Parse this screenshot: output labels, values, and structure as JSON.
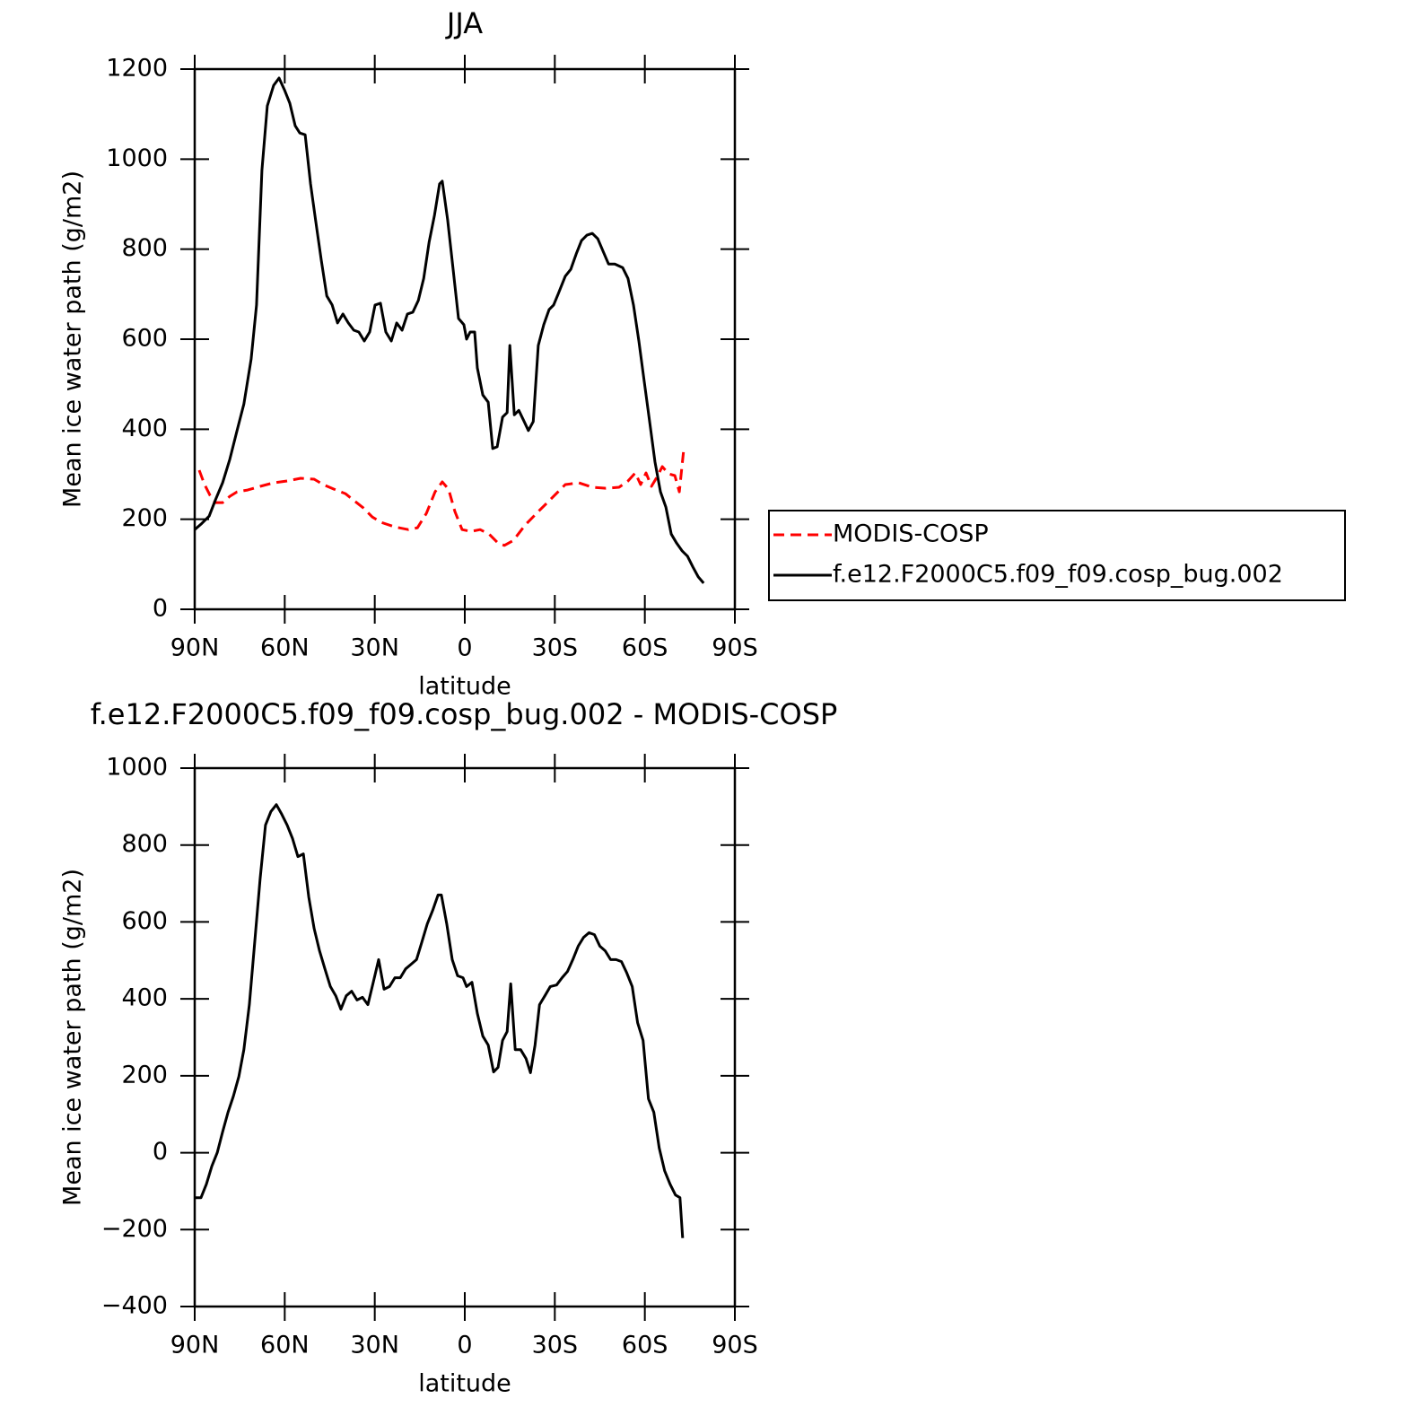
{
  "chart_data": [
    {
      "type": "line",
      "title": "JJA",
      "xlabel": "latitude",
      "ylabel": "Mean ice water path (g/m2)",
      "xlim": [
        90,
        -90
      ],
      "ylim": [
        0,
        1200
      ],
      "xticks": [
        {
          "value": 90,
          "label": "90N"
        },
        {
          "value": 60,
          "label": "60N"
        },
        {
          "value": 30,
          "label": "30N"
        },
        0,
        {
          "value": -30,
          "label": "30S"
        },
        {
          "value": -60,
          "label": "60S"
        },
        {
          "value": -90,
          "label": "90S"
        }
      ],
      "yticks": [
        0,
        200,
        400,
        600,
        800,
        1000,
        1200
      ],
      "legend": "right",
      "series": [
        {
          "name": "MODIS-COSP",
          "color": "#ff0000",
          "style": "dashed",
          "x": [
            88.5,
            86.7,
            84.9,
            83.1,
            80.7,
            78.3,
            75.9,
            72.4,
            68.2,
            63.7,
            59.2,
            54.7,
            50.2,
            47.2,
            43.6,
            39.8,
            36.8,
            33.8,
            30.8,
            27.8,
            23.3,
            18.8,
            15.8,
            12.8,
            9.9,
            7.5,
            5.4,
            3.3,
            0.9,
            -2.1,
            -5.1,
            -8.1,
            -11.1,
            -13.2,
            -16.2,
            -20.1,
            -24.5,
            -29.0,
            -33.5,
            -38.0,
            -42.5,
            -47.0,
            -51.4,
            -54.4,
            -56.8,
            -58.6,
            -60.4,
            -62.2,
            -64.0,
            -65.8,
            -67.9,
            -70.0,
            -71.5,
            -73.0
          ],
          "values": [
            309,
            277,
            253,
            237,
            237,
            251,
            261,
            265,
            273,
            281,
            285,
            291,
            289,
            277,
            267,
            257,
            241,
            225,
            205,
            193,
            183,
            177,
            181,
            213,
            261,
            283,
            267,
            217,
            177,
            173,
            177,
            167,
            147,
            142,
            153,
            187,
            217,
            247,
            277,
            281,
            271,
            269,
            271,
            285,
            303,
            277,
            303,
            273,
            293,
            317,
            301,
            297,
            261,
            357
          ]
        },
        {
          "name": "f.e12.F2000C5.f09_f09.cosp_bug.002",
          "color": "#000000",
          "style": "solid",
          "x": [
            90,
            87.6,
            85.2,
            83.1,
            80.7,
            78.3,
            75.9,
            73.6,
            71.2,
            69.4,
            67.6,
            65.8,
            63.7,
            61.9,
            60.1,
            58.3,
            56.5,
            55.0,
            53.2,
            51.4,
            49.6,
            47.8,
            46.0,
            44.2,
            42.4,
            40.6,
            38.8,
            37.0,
            35.3,
            33.5,
            31.7,
            29.9,
            28.1,
            26.3,
            24.5,
            22.7,
            20.9,
            19.1,
            17.3,
            15.5,
            13.7,
            11.9,
            10.1,
            8.4,
            7.5,
            5.7,
            3.9,
            2.1,
            0.3,
            -0.6,
            -1.8,
            -3.3,
            -4.2,
            -6.0,
            -7.8,
            -9.3,
            -10.8,
            -12.6,
            -14.1,
            -15.0,
            -16.5,
            -18.0,
            -19.8,
            -21.2,
            -22.8,
            -24.5,
            -26.3,
            -28.1,
            -29.6,
            -31.1,
            -33.5,
            -35.3,
            -37.1,
            -38.9,
            -40.7,
            -42.5,
            -44.3,
            -46.1,
            -47.9,
            -50.0,
            -52.6,
            -54.4,
            -56.2,
            -58.0,
            -59.8,
            -61.6,
            -63.4,
            -65.2,
            -67.0,
            -68.8,
            -70.6,
            -72.4,
            -74.2,
            -76.0,
            -77.8,
            -79.6
          ],
          "values": [
            177,
            191,
            207,
            243,
            281,
            333,
            397,
            456,
            556,
            676,
            975,
            1118,
            1164,
            1180,
            1154,
            1124,
            1074,
            1058,
            1054,
            945,
            859,
            775,
            696,
            676,
            636,
            656,
            636,
            620,
            616,
            596,
            616,
            676,
            680,
            616,
            596,
            636,
            620,
            656,
            660,
            686,
            735,
            815,
            875,
            945,
            951,
            865,
            755,
            646,
            632,
            600,
            616,
            616,
            536,
            476,
            460,
            357,
            361,
            427,
            437,
            586,
            432,
            442,
            417,
            397,
            417,
            586,
            632,
            666,
            676,
            700,
            740,
            755,
            789,
            819,
            831,
            835,
            823,
            795,
            767,
            767,
            759,
            735,
            676,
            596,
            506,
            417,
            327,
            261,
            227,
            167,
            147,
            130,
            118,
            94,
            72,
            58
          ]
        }
      ]
    },
    {
      "type": "line",
      "title": "f.e12.F2000C5.f09_f09.cosp_bug.002 - MODIS-COSP",
      "xlabel": "latitude",
      "ylabel": "Mean ice water path (g/m2)",
      "xlim": [
        90,
        -90
      ],
      "ylim": [
        -400,
        1000
      ],
      "xticks": [
        {
          "value": 90,
          "label": "90N"
        },
        {
          "value": 60,
          "label": "60N"
        },
        {
          "value": 30,
          "label": "30N"
        },
        0,
        {
          "value": -30,
          "label": "30S"
        },
        {
          "value": -60,
          "label": "60S"
        },
        {
          "value": -90,
          "label": "90S"
        }
      ],
      "yticks": [
        {
          "value": -400,
          "label": "−400"
        },
        {
          "value": -200,
          "label": "−200"
        },
        0,
        200,
        400,
        600,
        800,
        1000
      ],
      "series": [
        {
          "color": "#000000",
          "style": "solid",
          "x": [
            89.7,
            87.9,
            86.1,
            84.3,
            82.5,
            80.7,
            78.9,
            77.1,
            75.3,
            73.6,
            71.8,
            70.0,
            68.2,
            66.4,
            64.6,
            62.8,
            61.0,
            59.2,
            57.4,
            55.6,
            53.8,
            52.0,
            50.2,
            48.4,
            46.6,
            44.8,
            43.0,
            41.3,
            39.5,
            37.7,
            35.9,
            34.1,
            32.3,
            30.5,
            28.7,
            26.9,
            25.1,
            23.3,
            21.5,
            19.7,
            17.9,
            16.1,
            14.3,
            12.5,
            10.7,
            8.9,
            7.8,
            6.0,
            4.2,
            2.4,
            0.6,
            -0.6,
            -2.4,
            -4.2,
            -6.0,
            -7.8,
            -9.6,
            -11.1,
            -12.6,
            -14.1,
            -15.3,
            -16.8,
            -18.6,
            -20.4,
            -21.9,
            -23.4,
            -24.9,
            -26.7,
            -28.5,
            -30.6,
            -32.4,
            -34.2,
            -36.0,
            -37.8,
            -39.6,
            -41.4,
            -43.2,
            -45.0,
            -46.8,
            -48.6,
            -50.4,
            -52.2,
            -54.0,
            -55.8,
            -57.6,
            -59.4,
            -61.2,
            -63.0,
            -64.8,
            -66.6,
            -68.4,
            -70.2,
            -71.7,
            -72.6
          ],
          "values": [
            -117,
            -117,
            -82,
            -35,
            0,
            54,
            105,
            147,
            198,
            268,
            385,
            548,
            712,
            852,
            887,
            905,
            880,
            852,
            817,
            770,
            777,
            665,
            583,
            525,
            478,
            432,
            408,
            373,
            408,
            420,
            397,
            404,
            385,
            443,
            502,
            425,
            432,
            455,
            455,
            478,
            490,
            502,
            548,
            595,
            630,
            670,
            670,
            595,
            502,
            460,
            455,
            432,
            443,
            362,
            303,
            280,
            210,
            222,
            292,
            315,
            439,
            268,
            268,
            245,
            208,
            280,
            385,
            408,
            432,
            436,
            455,
            471,
            502,
            537,
            560,
            572,
            567,
            537,
            525,
            502,
            502,
            497,
            467,
            432,
            338,
            292,
            140,
            105,
            12,
            -47,
            -82,
            -110,
            -117,
            -222
          ]
        }
      ]
    }
  ]
}
